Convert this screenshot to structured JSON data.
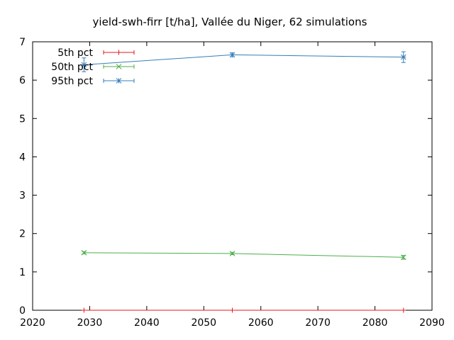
{
  "chart_data": {
    "type": "line",
    "title": "yield-swh-firr [t/ha], Vallée du Niger, 62 simulations",
    "xlabel": "",
    "ylabel": "",
    "xlim": [
      2020,
      2090
    ],
    "ylim": [
      0,
      7
    ],
    "xticks": [
      2020,
      2030,
      2040,
      2050,
      2060,
      2070,
      2080,
      2090
    ],
    "yticks": [
      0,
      1,
      2,
      3,
      4,
      5,
      6,
      7
    ],
    "x": [
      2029,
      2055,
      2085
    ],
    "legend": {
      "placement": "top-left"
    },
    "grid": false,
    "series": [
      {
        "name": "5th pct",
        "color": "#e41a1c",
        "marker": "plus",
        "values": [
          0,
          0,
          0
        ],
        "err": [
          0,
          0,
          0
        ]
      },
      {
        "name": "50th pct",
        "color": "#4daf4a",
        "marker": "cross",
        "values": [
          1.5,
          1.48,
          1.38
        ],
        "err": [
          0.03,
          0.03,
          0.05
        ]
      },
      {
        "name": "95th pct",
        "color": "#377eb8",
        "marker": "star",
        "values": [
          6.4,
          6.66,
          6.6
        ],
        "err": [
          0.18,
          0.05,
          0.14
        ]
      }
    ]
  }
}
